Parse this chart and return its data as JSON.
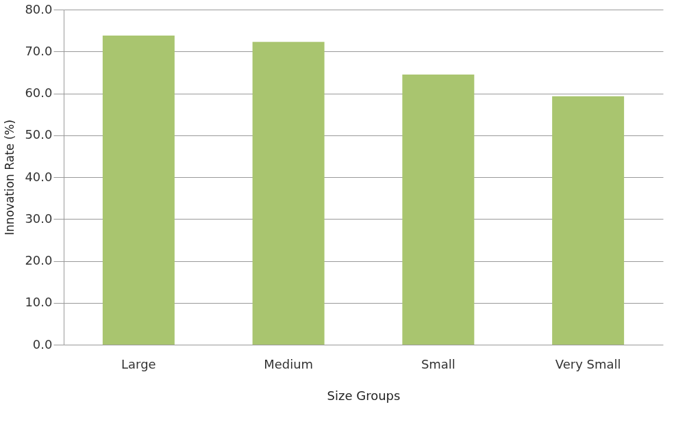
{
  "chart_data": {
    "type": "bar",
    "xlabel": "Size Groups",
    "ylabel": "Innovation Rate (%)",
    "categories": [
      "Large",
      "Medium",
      "Small",
      "Very Small"
    ],
    "values": [
      73.8,
      72.3,
      64.5,
      59.3
    ],
    "color": "#a9c56f",
    "ylim": [
      0,
      80
    ],
    "yticks": [
      {
        "value": 0,
        "label": "0.0"
      },
      {
        "value": 10,
        "label": "10.0"
      },
      {
        "value": 20,
        "label": "20.0"
      },
      {
        "value": 30,
        "label": "30.0"
      },
      {
        "value": 40,
        "label": "40.0"
      },
      {
        "value": 50,
        "label": "50.0"
      },
      {
        "value": 60,
        "label": "60.0"
      },
      {
        "value": 70,
        "label": "70.0"
      },
      {
        "value": 80,
        "label": "80.0"
      }
    ],
    "grid": "y"
  }
}
